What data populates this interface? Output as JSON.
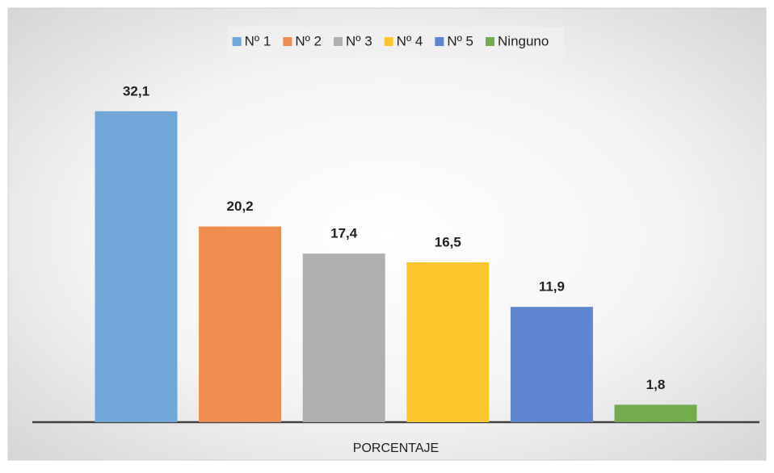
{
  "chart_data": {
    "type": "bar",
    "categories": [
      "PORCENTAJE"
    ],
    "series": [
      {
        "name": "Nº 1",
        "color": "#6fa7db",
        "values": [
          32.1
        ],
        "value_labels": [
          "32,1"
        ]
      },
      {
        "name": "Nº 2",
        "color": "#ef8d50",
        "values": [
          20.2
        ],
        "value_labels": [
          "20,2"
        ]
      },
      {
        "name": "Nº 3",
        "color": "#afafaf",
        "values": [
          17.4
        ],
        "value_labels": [
          "17,4"
        ]
      },
      {
        "name": "Nº 4",
        "color": "#fdc62c",
        "values": [
          16.5
        ],
        "value_labels": [
          "16,5"
        ]
      },
      {
        "name": "Nº 5",
        "color": "#5c87d0",
        "values": [
          11.9
        ],
        "value_labels": [
          "11,9"
        ]
      },
      {
        "name": "Ninguno",
        "color": "#72ad4d",
        "values": [
          1.8
        ],
        "value_labels": [
          "1,8"
        ]
      }
    ],
    "ylim": [
      0,
      35
    ],
    "legend": "top"
  }
}
